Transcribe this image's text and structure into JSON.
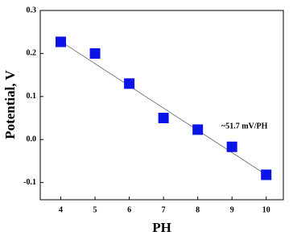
{
  "chart_data": {
    "type": "scatter",
    "x_label": "PH",
    "y_label": "Potential, V",
    "annotation": "~51.7 mV/PH",
    "x": [
      4,
      5,
      6,
      7,
      8,
      9,
      10
    ],
    "values": [
      0.227,
      0.2,
      0.13,
      0.05,
      0.023,
      -0.017,
      -0.082
    ],
    "color": "#0a14e6",
    "fit": {
      "x": [
        4,
        10
      ],
      "values": [
        0.228,
        -0.082
      ]
    },
    "xlim": [
      3.4,
      10.5
    ],
    "xticks": [
      4,
      5,
      6,
      7,
      8,
      9,
      10
    ],
    "ylim": [
      -0.14,
      0.3
    ],
    "yticks": [
      -0.1,
      {
        "value": 0,
        "label": "0.0"
      },
      0.1,
      0.2,
      0.3
    ]
  }
}
